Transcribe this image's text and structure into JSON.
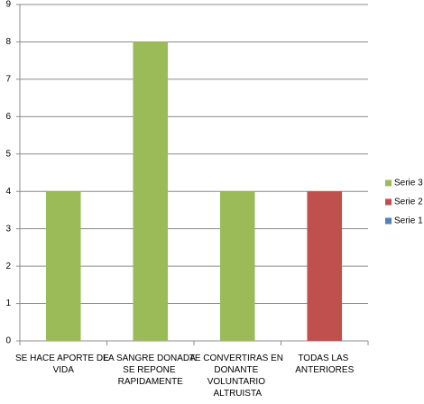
{
  "chart_data": {
    "type": "bar",
    "categories": [
      "SE HACE APORTE DE VIDA",
      "LA SANGRE DONADA SE REPONE RAPIDAMENTE",
      "TE CONVERTIRAS EN DONANTE VOLUNTARIO ALTRUISTA",
      "TODAS LAS ANTERIORES"
    ],
    "series": [
      {
        "name": "Serie 1",
        "color": "#4f81bd",
        "values": [
          0,
          0,
          0,
          0
        ]
      },
      {
        "name": "Serie 2",
        "color": "#c0504d",
        "values": [
          0,
          0,
          0,
          4
        ]
      },
      {
        "name": "Serie 3",
        "color": "#9bbb59",
        "values": [
          4,
          8,
          4,
          0
        ]
      }
    ],
    "ylim": [
      0,
      9
    ],
    "yticks": [
      0,
      1,
      2,
      3,
      4,
      5,
      6,
      7,
      8,
      9
    ],
    "grid": true,
    "legend": "right"
  }
}
